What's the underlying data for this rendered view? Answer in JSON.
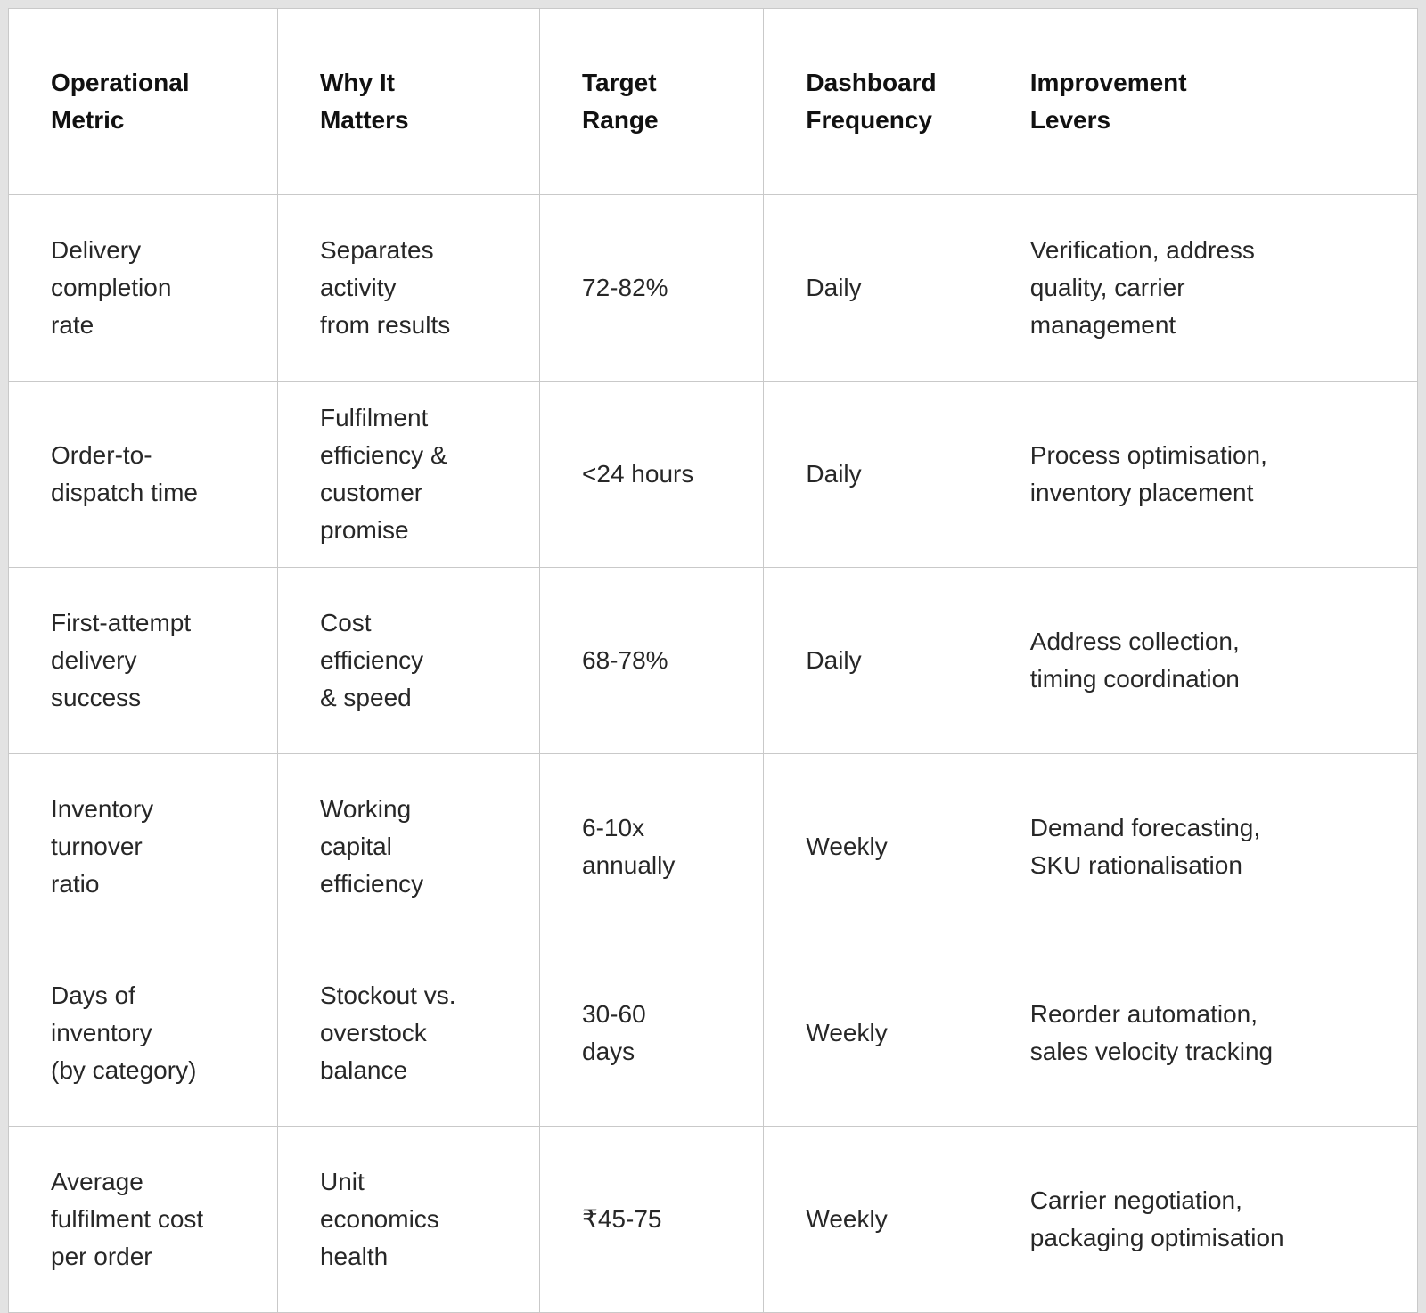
{
  "chart_data": {
    "type": "table",
    "columns": [
      "Operational Metric",
      "Why It Matters",
      "Target Range",
      "Dashboard Frequency",
      "Improvement Levers"
    ],
    "rows": [
      [
        "Delivery completion rate",
        "Separates activity from results",
        "72-82%",
        "Daily",
        "Verification, address quality, carrier management"
      ],
      [
        "Order-to-dispatch time",
        "Fulfilment efficiency & customer promise",
        "<24 hours",
        "Daily",
        "Process optimisation, inventory placement"
      ],
      [
        "First-attempt delivery success",
        "Cost efficiency & speed",
        "68-78%",
        "Daily",
        "Address collection, timing coordination"
      ],
      [
        "Inventory turnover ratio",
        "Working capital efficiency",
        "6-10x annually",
        "Weekly",
        "Demand forecasting, SKU rationalisation"
      ],
      [
        "Days of inventory (by category)",
        "Stockout vs. overstock balance",
        "30-60 days",
        "Weekly",
        "Reorder automation, sales velocity tracking"
      ],
      [
        "Average fulfilment cost per order",
        "Unit economics health",
        "₹45-75",
        "Weekly",
        "Carrier negotiation, packaging optimisation"
      ]
    ]
  },
  "table": {
    "headers": [
      "Operational\nMetric",
      "Why It\nMatters",
      "Target\nRange",
      "Dashboard\nFrequency",
      "Improvement\nLevers"
    ],
    "rows": [
      {
        "cells": [
          "Delivery\ncompletion\nrate",
          "Separates\nactivity\nfrom results",
          "72-82%",
          "Daily",
          "Verification, address\nquality, carrier\nmanagement"
        ]
      },
      {
        "cells": [
          "Order-to-\ndispatch time",
          "Fulfilment\nefficiency &\ncustomer\npromise",
          "<24 hours",
          "Daily",
          "Process optimisation,\ninventory placement"
        ]
      },
      {
        "cells": [
          "First-attempt\ndelivery\nsuccess",
          "Cost\nefficiency\n& speed",
          "68-78%",
          "Daily",
          "Address collection,\ntiming coordination"
        ]
      },
      {
        "cells": [
          "Inventory\nturnover\nratio",
          "Working\ncapital\nefficiency",
          "6-10x\nannually",
          "Weekly",
          "Demand forecasting,\nSKU rationalisation"
        ]
      },
      {
        "cells": [
          "Days of\ninventory\n(by category)",
          "Stockout vs.\noverstock\nbalance",
          "30-60\ndays",
          "Weekly",
          "Reorder automation,\nsales velocity tracking"
        ]
      },
      {
        "cells": [
          "Average\nfulfilment cost\nper order",
          "Unit\neconomics\nhealth",
          "₹45-75",
          "Weekly",
          "Carrier negotiation,\npackaging optimisation"
        ]
      }
    ]
  },
  "colors": {
    "background": "#e3e3e3",
    "cell_background": "#ffffff",
    "grid_line": "#c9c9c9",
    "header_text": "#111111",
    "body_text": "#272727"
  }
}
